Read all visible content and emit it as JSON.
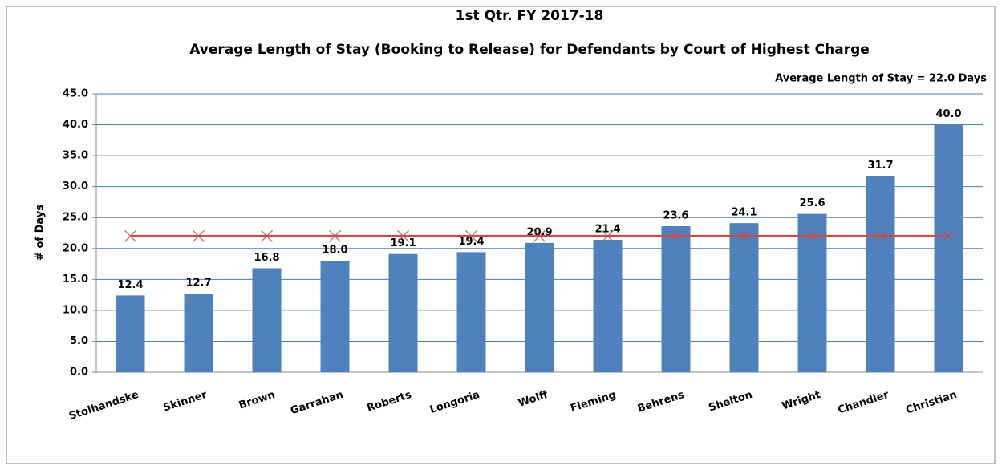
{
  "chart_data": {
    "type": "bar",
    "title": "1st Qtr. FY 2017-18",
    "subtitle": "Average Length of Stay (Booking to Release) for Defendants by Court of Highest Charge",
    "annotation": "Average Length of Stay = 22.0 Days",
    "y_label": "# of Days",
    "categories": [
      "Stolhandske",
      "Skinner",
      "Brown",
      "Garrahan",
      "Roberts",
      "Longoria",
      "Wolff",
      "Fleming",
      "Behrens",
      "Shelton",
      "Wright",
      "Chandler",
      "Christian"
    ],
    "series": [
      {
        "type": "bar",
        "color": "#4f81bd",
        "values": [
          12.4,
          12.7,
          16.8,
          18.0,
          19.1,
          19.4,
          20.9,
          21.4,
          23.6,
          24.1,
          25.6,
          31.7,
          40.0
        ],
        "value_labels": [
          "12.4",
          "12.7",
          "16.8",
          "18.0",
          "19.1",
          "19.4",
          "20.9",
          "21.4",
          "23.6",
          "24.1",
          "25.6",
          "31.7",
          "40.0"
        ]
      },
      {
        "type": "line",
        "color": "#c0504d",
        "values": [
          22.0,
          22.0,
          22.0,
          22.0,
          22.0,
          22.0,
          22.0,
          22.0,
          22.0,
          22.0,
          22.0,
          22.0,
          22.0
        ]
      }
    ],
    "ylim": [
      0,
      45
    ],
    "yticks": [
      {
        "value": 0,
        "label": "0.0"
      },
      {
        "value": 5,
        "label": "5.0"
      },
      {
        "value": 10,
        "label": "10.0"
      },
      {
        "value": 15,
        "label": "15.0"
      },
      {
        "value": 20,
        "label": "20.0"
      },
      {
        "value": 25,
        "label": "25.0"
      },
      {
        "value": 30,
        "label": "30.0"
      },
      {
        "value": 35,
        "label": "35.0"
      },
      {
        "value": 40,
        "label": "40.0"
      },
      {
        "value": 45,
        "label": "45.0"
      }
    ],
    "grid": true
  }
}
